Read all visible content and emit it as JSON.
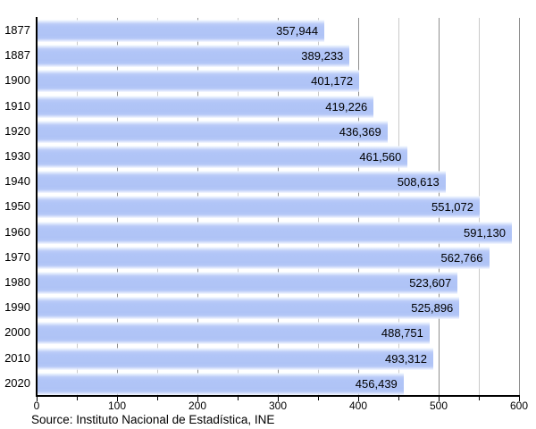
{
  "chart_data": {
    "type": "bar",
    "orientation": "horizontal",
    "title": "",
    "xlabel": "",
    "ylabel": "",
    "categories": [
      "1877",
      "1887",
      "1900",
      "1910",
      "1920",
      "1930",
      "1940",
      "1950",
      "1960",
      "1970",
      "1980",
      "1990",
      "2000",
      "2010",
      "2020"
    ],
    "values": [
      357944,
      389233,
      401172,
      419226,
      436369,
      461560,
      508613,
      551072,
      591130,
      562766,
      523607,
      525896,
      488751,
      493312,
      456439
    ],
    "value_labels": [
      "357,944",
      "389,233",
      "401,172",
      "419,226",
      "436,369",
      "461,560",
      "508,613",
      "551,072",
      "591,130",
      "562,766",
      "523,607",
      "525,896",
      "488,751",
      "493,312",
      "456,439"
    ],
    "xlim": [
      0,
      600
    ],
    "x_axis_unit": "thousands",
    "x_major_ticks": [
      0,
      100,
      200,
      300,
      400,
      500,
      600
    ],
    "x_minor_ticks": [
      50,
      150,
      250,
      350,
      450,
      550
    ],
    "grid": true,
    "legend": false
  },
  "source": {
    "text": "Source: Instituto Nacional de Estadística, INE"
  },
  "colors": {
    "bar_base": "#b0c4f6",
    "bar_highlight": "#eef4fe",
    "major_grid": "#8e8e8e",
    "minor_grid": "#c9c9c9",
    "axis": "#000000",
    "text": "#000000",
    "background": "#ffffff"
  }
}
